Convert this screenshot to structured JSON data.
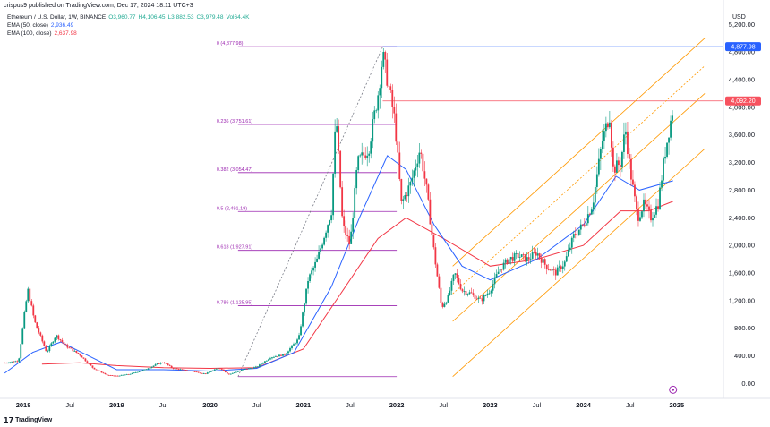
{
  "header": {
    "publisher": "crispus9 published on TradingView.com, Dec 17, 2024 18:11 UTC+3",
    "symbol": "Ethereum / U.S. Dollar, 1W, BINANCE",
    "ohlc": {
      "o": "O3,960.77",
      "h": "H4,106.45",
      "l": "L3,882.53",
      "c": "C3,979.48",
      "vol": "Vol64.4K"
    },
    "ema50": {
      "label": "EMA (50, close)",
      "value": "2,936.49",
      "color": "#2962ff"
    },
    "ema100": {
      "label": "EMA (100, close)",
      "value": "2,637.98",
      "color": "#f23645"
    }
  },
  "footer": {
    "brand": "TradingView"
  },
  "chart_data": {
    "type": "candlestick",
    "currency": "USD",
    "y_axis_ticks": [
      "5,200.00",
      "4,800.00",
      "4,400.00",
      "4,000.00",
      "3,600.00",
      "3,200.00",
      "2,800.00",
      "2,400.00",
      "2,000.00",
      "1,600.00",
      "1,200.00",
      "800.00",
      "400.00",
      "0.00"
    ],
    "y_tick_values": [
      5200,
      4800,
      4400,
      4000,
      3600,
      3200,
      2800,
      2400,
      2000,
      1600,
      1200,
      800,
      400,
      0
    ],
    "x_axis_ticks": [
      "2018",
      "Jul",
      "2019",
      "Jul",
      "2020",
      "Jul",
      "2021",
      "Jul",
      "2022",
      "Jul",
      "2023",
      "Jul",
      "2024",
      "Jul",
      "2025"
    ],
    "x_tick_dates": [
      2018.0,
      2018.5,
      2019.0,
      2019.5,
      2020.0,
      2020.5,
      2021.0,
      2021.5,
      2022.0,
      2022.5,
      2023.0,
      2023.5,
      2024.0,
      2024.5,
      2025.0
    ],
    "ylim": [
      -150,
      5450
    ],
    "xlim": [
      2017.75,
      2025.5
    ],
    "price_tags": [
      {
        "label": "4,877.98",
        "value": 4877.98,
        "color": "#2962ff"
      },
      {
        "label": "4,092.20",
        "value": 4092.2,
        "color": "#f7525f"
      }
    ],
    "fibonacci": [
      {
        "label": "0 (4,877.98)",
        "value": 4877.98
      },
      {
        "label": "0.236 (3,751.61)",
        "value": 3751.61
      },
      {
        "label": "0.382 (3,054.47)",
        "value": 3054.47
      },
      {
        "label": "0.5 (2,491.19)",
        "value": 2491.19
      },
      {
        "label": "0.618 (1,927.91)",
        "value": 1927.91
      },
      {
        "label": "0.786 (1,125.95)",
        "value": 1125.95
      }
    ],
    "fib_color": "#9c27b0",
    "fib_base": 100,
    "price_path": [
      [
        2017.8,
        300
      ],
      [
        2017.95,
        330
      ],
      [
        2018.02,
        1100
      ],
      [
        2018.05,
        1350
      ],
      [
        2018.12,
        900
      ],
      [
        2018.25,
        450
      ],
      [
        2018.35,
        700
      ],
      [
        2018.45,
        550
      ],
      [
        2018.6,
        420
      ],
      [
        2018.75,
        220
      ],
      [
        2018.9,
        120
      ],
      [
        2019.0,
        110
      ],
      [
        2019.15,
        140
      ],
      [
        2019.3,
        200
      ],
      [
        2019.45,
        290
      ],
      [
        2019.5,
        310
      ],
      [
        2019.6,
        220
      ],
      [
        2019.8,
        180
      ],
      [
        2019.95,
        140
      ],
      [
        2020.1,
        230
      ],
      [
        2020.2,
        130
      ],
      [
        2020.35,
        200
      ],
      [
        2020.5,
        240
      ],
      [
        2020.65,
        380
      ],
      [
        2020.8,
        420
      ],
      [
        2020.95,
        650
      ],
      [
        2021.05,
        1500
      ],
      [
        2021.15,
        1800
      ],
      [
        2021.3,
        2500
      ],
      [
        2021.35,
        3900
      ],
      [
        2021.42,
        2300
      ],
      [
        2021.5,
        2000
      ],
      [
        2021.58,
        3200
      ],
      [
        2021.7,
        3400
      ],
      [
        2021.8,
        4200
      ],
      [
        2021.85,
        4750
      ],
      [
        2021.9,
        4400
      ],
      [
        2021.98,
        3800
      ],
      [
        2022.05,
        2600
      ],
      [
        2022.15,
        2900
      ],
      [
        2022.25,
        3400
      ],
      [
        2022.32,
        2800
      ],
      [
        2022.4,
        1900
      ],
      [
        2022.48,
        1100
      ],
      [
        2022.55,
        1250
      ],
      [
        2022.62,
        1600
      ],
      [
        2022.7,
        1350
      ],
      [
        2022.8,
        1300
      ],
      [
        2022.9,
        1200
      ],
      [
        2023.0,
        1350
      ],
      [
        2023.1,
        1650
      ],
      [
        2023.2,
        1800
      ],
      [
        2023.3,
        1850
      ],
      [
        2023.4,
        1800
      ],
      [
        2023.5,
        1900
      ],
      [
        2023.6,
        1700
      ],
      [
        2023.7,
        1600
      ],
      [
        2023.8,
        1750
      ],
      [
        2023.9,
        2150
      ],
      [
        2024.0,
        2300
      ],
      [
        2024.1,
        2600
      ],
      [
        2024.2,
        3500
      ],
      [
        2024.28,
        3900
      ],
      [
        2024.32,
        3100
      ],
      [
        2024.4,
        3200
      ],
      [
        2024.45,
        3700
      ],
      [
        2024.5,
        3100
      ],
      [
        2024.58,
        2400
      ],
      [
        2024.65,
        2600
      ],
      [
        2024.72,
        2400
      ],
      [
        2024.8,
        2600
      ],
      [
        2024.87,
        3300
      ],
      [
        2024.92,
        3700
      ],
      [
        2024.96,
        3980
      ]
    ],
    "ema50_path": [
      [
        2017.8,
        150
      ],
      [
        2018.1,
        450
      ],
      [
        2018.4,
        600
      ],
      [
        2018.7,
        400
      ],
      [
        2019.0,
        200
      ],
      [
        2019.5,
        200
      ],
      [
        2020.0,
        180
      ],
      [
        2020.5,
        220
      ],
      [
        2020.9,
        450
      ],
      [
        2021.3,
        1400
      ],
      [
        2021.6,
        2400
      ],
      [
        2021.9,
        3300
      ],
      [
        2022.1,
        3100
      ],
      [
        2022.4,
        2300
      ],
      [
        2022.7,
        1700
      ],
      [
        2023.0,
        1500
      ],
      [
        2023.5,
        1800
      ],
      [
        2024.0,
        2300
      ],
      [
        2024.35,
        3000
      ],
      [
        2024.6,
        2800
      ],
      [
        2024.96,
        2936
      ]
    ],
    "ema100_path": [
      [
        2018.2,
        280
      ],
      [
        2018.6,
        300
      ],
      [
        2019.0,
        260
      ],
      [
        2019.5,
        230
      ],
      [
        2020.0,
        220
      ],
      [
        2020.5,
        230
      ],
      [
        2021.0,
        500
      ],
      [
        2021.4,
        1300
      ],
      [
        2021.8,
        2100
      ],
      [
        2022.1,
        2400
      ],
      [
        2022.5,
        2100
      ],
      [
        2023.0,
        1700
      ],
      [
        2023.5,
        1800
      ],
      [
        2024.0,
        2000
      ],
      [
        2024.4,
        2500
      ],
      [
        2024.7,
        2500
      ],
      [
        2024.96,
        2638
      ]
    ],
    "overlay_color_up": "#089981",
    "overlay_color_down": "#f23645"
  }
}
